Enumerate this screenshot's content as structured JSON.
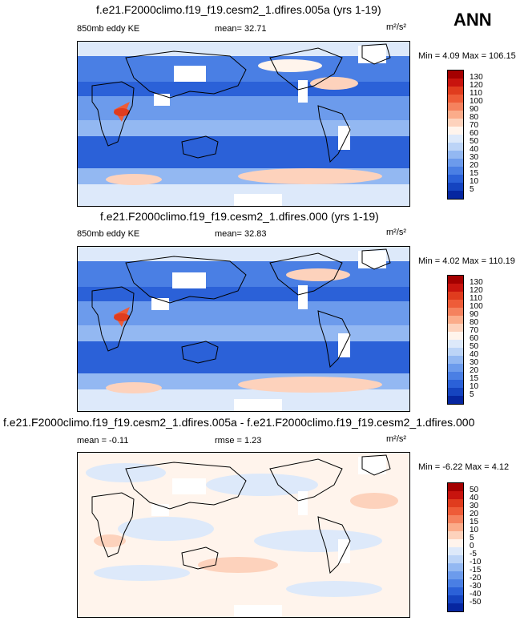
{
  "season": "ANN",
  "panels": [
    {
      "title": "f.e21.F2000climo.f19_f19.cesm2_1.dfires.005a (yrs 1-19)",
      "left_label": "850mb eddy KE",
      "center_label": "mean=  32.71",
      "units": "m²/s²",
      "minmax": "Min =   4.09 Max = 106.15",
      "levels": [
        "130",
        "120",
        "110",
        "100",
        "90",
        "80",
        "70",
        "60",
        "50",
        "40",
        "30",
        "20",
        "15",
        "10",
        "5"
      ],
      "colors": [
        "#a40000",
        "#c8140e",
        "#e03c1e",
        "#ee5c38",
        "#f5825e",
        "#fbac8a",
        "#fdd2bc",
        "#fff4ec",
        "#dde9fa",
        "#bcd4f7",
        "#93b8f2",
        "#6c9bec",
        "#4a7fe4",
        "#2b61d8",
        "#1544c0",
        "#0626a0"
      ]
    },
    {
      "title": "f.e21.F2000climo.f19_f19.cesm2_1.dfires.000 (yrs 1-19)",
      "left_label": "850mb eddy KE",
      "center_label": "mean=  32.83",
      "units": "m²/s²",
      "minmax": "Min =   4.02 Max = 110.19",
      "levels": [
        "130",
        "120",
        "110",
        "100",
        "90",
        "80",
        "70",
        "60",
        "50",
        "40",
        "30",
        "20",
        "15",
        "10",
        "5"
      ],
      "colors": [
        "#a40000",
        "#c8140e",
        "#e03c1e",
        "#ee5c38",
        "#f5825e",
        "#fbac8a",
        "#fdd2bc",
        "#fff4ec",
        "#dde9fa",
        "#bcd4f7",
        "#93b8f2",
        "#6c9bec",
        "#4a7fe4",
        "#2b61d8",
        "#1544c0",
        "#0626a0"
      ]
    },
    {
      "title": "f.e21.F2000climo.f19_f19.cesm2_1.dfires.005a - f.e21.F2000climo.f19_f19.cesm2_1.dfires.000",
      "left_label": "mean =  -0.11",
      "center_label": "rmse =   1.23",
      "units": "m²/s²",
      "minmax": "Min =  -6.22 Max =   4.12",
      "levels": [
        "50",
        "40",
        "30",
        "20",
        "15",
        "10",
        "5",
        "0",
        "-5",
        "-10",
        "-15",
        "-20",
        "-30",
        "-40",
        "-50"
      ],
      "colors": [
        "#a40000",
        "#c8140e",
        "#e03c1e",
        "#ee5c38",
        "#f5825e",
        "#fbac8a",
        "#fdd2bc",
        "#fff4ec",
        "#dde9fa",
        "#bcd4f7",
        "#93b8f2",
        "#6c9bec",
        "#4a7fe4",
        "#2b61d8",
        "#1544c0",
        "#0626a0"
      ]
    }
  ]
}
